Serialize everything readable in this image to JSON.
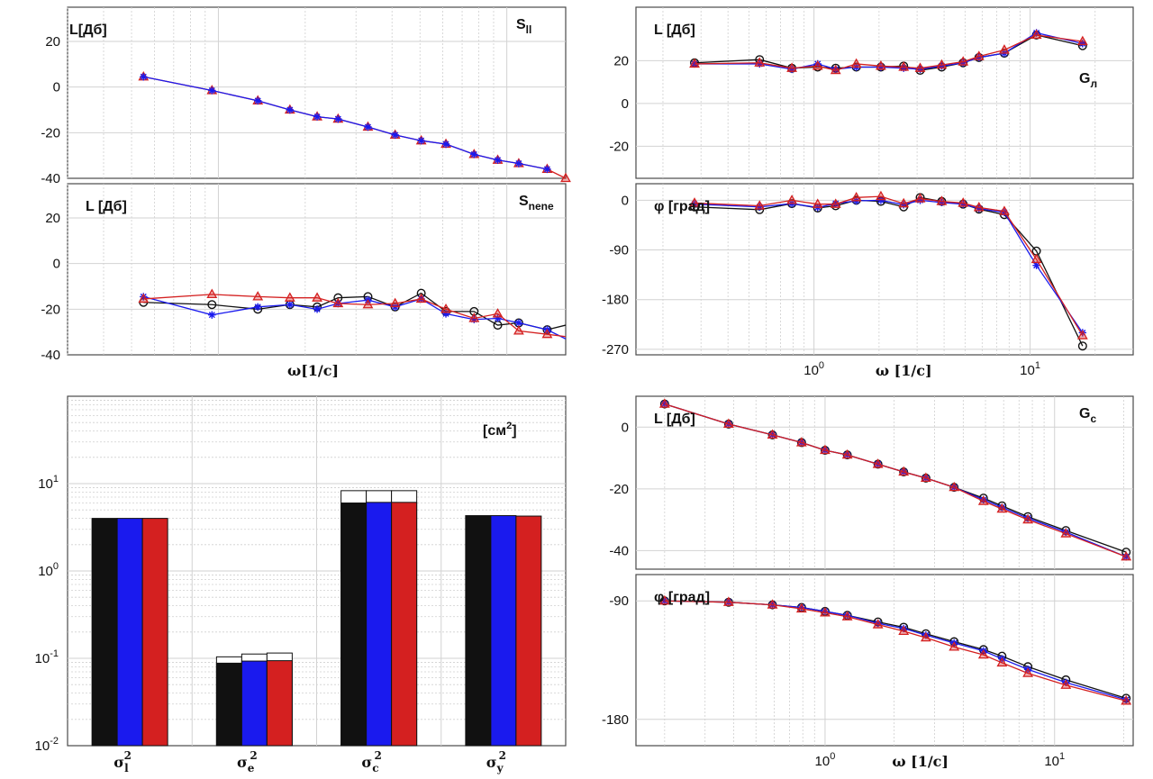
{
  "colors": {
    "black": "#111111",
    "blue": "#1a1aee",
    "red": "#d42020",
    "frame": "#4a4a4a"
  },
  "chart_data": [
    {
      "id": "p1",
      "type": "line",
      "xscale": "log",
      "xlim": [
        0.3,
        16
      ],
      "ylim": [
        -40,
        35
      ],
      "yticks": [
        -40,
        -20,
        0,
        20
      ],
      "ylabel": "L[Дб]",
      "title": "S",
      "title_sub": "ll",
      "show_xticks": false,
      "xlabel": "",
      "series": [
        {
          "color": "red",
          "marker": "triangle",
          "x": [
            0.55,
            0.95,
            1.37,
            1.77,
            2.2,
            2.6,
            3.3,
            4.1,
            5.05,
            6.15,
            7.7,
            9.3,
            11.0,
            13.8,
            16.0
          ],
          "y": [
            4.5,
            -1.5,
            -6,
            -10,
            -13,
            -14,
            -17.5,
            -21,
            -23.5,
            -25,
            -29.5,
            -32,
            -33.5,
            -36,
            -40
          ]
        },
        {
          "color": "blue",
          "marker": "star",
          "x": [
            0.55,
            0.95,
            1.37,
            1.77,
            2.2,
            2.6,
            3.3,
            4.1,
            5.05,
            6.15,
            7.7,
            9.3,
            11.0,
            13.8
          ],
          "y": [
            4.5,
            -1.5,
            -6,
            -10,
            -13,
            -14,
            -17.5,
            -21,
            -23.5,
            -25,
            -29.5,
            -32,
            -33.5,
            -36
          ]
        }
      ]
    },
    {
      "id": "p2",
      "type": "line",
      "xscale": "log",
      "xlim": [
        0.3,
        16
      ],
      "ylim": [
        -40,
        35
      ],
      "yticks": [
        -40,
        -20,
        0,
        20
      ],
      "ylabel": "L [Дб]",
      "title": "S",
      "title_sub": "nene",
      "show_xticks": false,
      "xlabel": "ω[1/c]",
      "series": [
        {
          "color": "black",
          "marker": "circle",
          "x": [
            0.55,
            0.95,
            1.37,
            1.77,
            2.2,
            2.6,
            3.3,
            4.1,
            5.05,
            6.15,
            7.7,
            9.3,
            11.0,
            13.8,
            17.9
          ],
          "y": [
            -17,
            -18,
            -20,
            -18,
            -19,
            -15,
            -14.5,
            -19,
            -13,
            -21,
            -21,
            -27,
            -26,
            -29,
            -27
          ]
        },
        {
          "color": "blue",
          "marker": "star",
          "x": [
            0.55,
            0.95,
            1.37,
            1.77,
            2.2,
            2.6,
            3.3,
            4.1,
            5.05,
            6.15,
            7.7,
            9.3,
            11.0,
            13.8,
            17.9
          ],
          "y": [
            -14.5,
            -22.5,
            -19,
            -18,
            -20,
            -17.5,
            -16,
            -19,
            -15.5,
            -22,
            -24.5,
            -24,
            -26,
            -29,
            -33
          ]
        },
        {
          "color": "red",
          "marker": "triangle",
          "x": [
            0.55,
            0.95,
            1.37,
            1.77,
            2.2,
            2.6,
            3.3,
            4.1,
            5.05,
            6.15,
            7.7,
            9.3,
            11.0,
            13.8,
            17.9
          ],
          "y": [
            -15.5,
            -13.5,
            -14.5,
            -15,
            -15,
            -17.5,
            -18,
            -17.5,
            -15.5,
            -20,
            -24,
            -22,
            -29.5,
            -31,
            -32
          ]
        }
      ]
    },
    {
      "id": "p3",
      "type": "bar",
      "yscale": "log",
      "ylim": [
        0.01,
        100
      ],
      "ytick_base": [
        "10",
        "10",
        "10",
        "10"
      ],
      "ytick_exp": [
        "-2",
        "-1",
        "0",
        "1"
      ],
      "unit": "[см",
      "unit_exp": "2",
      "unit_close": "]",
      "categories": [
        {
          "sym": "σ",
          "sub": "l",
          "sup": "2"
        },
        {
          "sym": "σ",
          "sub": "e",
          "sup": "2"
        },
        {
          "sym": "σ",
          "sub": "c",
          "sup": "2"
        },
        {
          "sym": "σ",
          "sub": "y",
          "sup": "2"
        }
      ],
      "series": [
        {
          "color": "black",
          "values": [
            4.0,
            0.088,
            6.0,
            4.3
          ],
          "outline_top": [
            4.0,
            0.104,
            8.3,
            4.3
          ]
        },
        {
          "color": "blue",
          "values": [
            4.0,
            0.093,
            6.1,
            4.3
          ],
          "outline_top": [
            4.0,
            0.112,
            8.3,
            4.3
          ]
        },
        {
          "color": "red",
          "values": [
            4.0,
            0.094,
            6.1,
            4.25
          ],
          "outline_top": [
            4.0,
            0.115,
            8.3,
            4.25
          ]
        }
      ]
    },
    {
      "id": "p4",
      "type": "line",
      "xscale": "log",
      "xlim": [
        0.15,
        30
      ],
      "ylim": [
        -35,
        45
      ],
      "yticks": [
        -20,
        0,
        20
      ],
      "ylabel": "L  [Дб]",
      "title": "G",
      "title_sub": "л",
      "show_xticks": false,
      "xlabel": "",
      "series": [
        {
          "color": "black",
          "marker": "circle",
          "x": [
            0.28,
            0.56,
            0.79,
            1.04,
            1.26,
            1.57,
            2.04,
            2.6,
            3.1,
            3.9,
            4.9,
            5.8,
            7.6,
            10.7,
            17.5
          ],
          "y": [
            19,
            20.5,
            16.5,
            17,
            16.5,
            17,
            17,
            17.5,
            15.5,
            17,
            19,
            21.5,
            23.5,
            32,
            27
          ]
        },
        {
          "color": "blue",
          "marker": "star",
          "x": [
            0.28,
            0.56,
            0.79,
            1.04,
            1.26,
            1.57,
            2.04,
            2.6,
            3.1,
            3.9,
            4.9,
            5.8,
            7.6,
            10.7,
            17.5
          ],
          "y": [
            18.5,
            18.5,
            16,
            18.5,
            16,
            17,
            17,
            16.5,
            16,
            17.5,
            19,
            21.5,
            23.5,
            33,
            28
          ]
        },
        {
          "color": "red",
          "marker": "triangle",
          "x": [
            0.28,
            0.56,
            0.79,
            1.04,
            1.26,
            1.57,
            2.04,
            2.6,
            3.1,
            3.9,
            4.9,
            5.8,
            7.6,
            10.7,
            17.5
          ],
          "y": [
            18.5,
            19,
            16.5,
            17.5,
            15.5,
            18.5,
            17.5,
            17,
            16.5,
            18,
            19.5,
            22,
            25,
            32,
            29
          ]
        }
      ]
    },
    {
      "id": "p5",
      "type": "line",
      "xscale": "log",
      "xlim": [
        0.15,
        30
      ],
      "ylim": [
        -280,
        30
      ],
      "yticks": [
        -270,
        -180,
        -90,
        0
      ],
      "ylabel": "φ [град]",
      "title": "",
      "title_sub": "",
      "show_xticks": true,
      "xtick_base": [
        "10",
        "10"
      ],
      "xtick_exp": [
        "0",
        "1"
      ],
      "xtick_vals": [
        1,
        10
      ],
      "xlabel": "ω  [1/c]",
      "series": [
        {
          "color": "black",
          "marker": "circle",
          "x": [
            0.28,
            0.56,
            0.79,
            1.04,
            1.26,
            1.57,
            2.04,
            2.6,
            3.1,
            3.9,
            4.9,
            5.8,
            7.6,
            10.7,
            17.5
          ],
          "y": [
            -12,
            -17,
            -6,
            -14,
            -10,
            0,
            -2,
            -12,
            5,
            -2,
            -7,
            -16,
            -26,
            -92,
            -264
          ]
        },
        {
          "color": "blue",
          "marker": "star",
          "x": [
            0.28,
            0.56,
            0.79,
            1.04,
            1.26,
            1.57,
            2.04,
            2.6,
            3.1,
            3.9,
            4.9,
            5.8,
            7.6,
            10.7,
            17.5
          ],
          "y": [
            -7,
            -12,
            -6,
            -13,
            -6,
            -1,
            0,
            -8,
            0,
            -4,
            -7,
            -15,
            -22,
            -118,
            -240
          ]
        },
        {
          "color": "red",
          "marker": "triangle",
          "x": [
            0.28,
            0.56,
            0.79,
            1.04,
            1.26,
            1.57,
            2.04,
            2.6,
            3.1,
            3.9,
            4.9,
            5.8,
            7.6,
            10.7,
            17.5
          ],
          "y": [
            -5,
            -10,
            0,
            -7,
            -7,
            5,
            7,
            -6,
            3,
            -2,
            -5,
            -13,
            -20,
            -107,
            -245
          ]
        }
      ]
    },
    {
      "id": "p6",
      "type": "line",
      "xscale": "log",
      "xlim": [
        0.15,
        22
      ],
      "ylim": [
        -46,
        10
      ],
      "yticks": [
        -40,
        -20,
        0
      ],
      "ylabel": "L  [Дб]",
      "title": "G",
      "title_sub": "c",
      "show_xticks": false,
      "xlabel": "",
      "series": [
        {
          "color": "black",
          "marker": "circle",
          "x": [
            0.2,
            0.38,
            0.59,
            0.79,
            1.0,
            1.25,
            1.7,
            2.2,
            2.75,
            3.65,
            4.9,
            5.9,
            7.65,
            11.2,
            20.5
          ],
          "y": [
            7.5,
            1,
            -2.5,
            -5,
            -7.5,
            -9,
            -12,
            -14.5,
            -16.5,
            -19.5,
            -23,
            -25.5,
            -29,
            -33.5,
            -40.5
          ]
        },
        {
          "color": "blue",
          "marker": "star",
          "x": [
            0.2,
            0.38,
            0.59,
            0.79,
            1.0,
            1.25,
            1.7,
            2.2,
            2.75,
            3.65,
            4.9,
            5.9,
            7.65,
            11.2,
            20.5
          ],
          "y": [
            7.5,
            1,
            -2.5,
            -5,
            -7.5,
            -9,
            -12,
            -14.5,
            -16.5,
            -19.5,
            -23.5,
            -26,
            -29.5,
            -34,
            -42
          ]
        },
        {
          "color": "red",
          "marker": "triangle",
          "x": [
            0.2,
            0.38,
            0.59,
            0.79,
            1.0,
            1.25,
            1.7,
            2.2,
            2.75,
            3.65,
            4.9,
            5.9,
            7.65,
            11.2,
            20.5
          ],
          "y": [
            7.5,
            1,
            -2.5,
            -5,
            -7.5,
            -9,
            -12,
            -14.5,
            -16.5,
            -19.5,
            -24,
            -26.5,
            -30,
            -34.5,
            -42
          ]
        }
      ]
    },
    {
      "id": "p7",
      "type": "line",
      "xscale": "log",
      "xlim": [
        0.15,
        22
      ],
      "ylim": [
        -200,
        -70
      ],
      "yticks": [
        -180,
        -90
      ],
      "ylabel": "φ [град]",
      "title": "",
      "title_sub": "",
      "show_xticks": true,
      "xtick_base": [
        "10",
        "10"
      ],
      "xtick_exp": [
        "0",
        "1"
      ],
      "xtick_vals": [
        1,
        10
      ],
      "xlabel": "ω  [1/c]",
      "series": [
        {
          "color": "black",
          "marker": "circle",
          "x": [
            0.2,
            0.38,
            0.59,
            0.79,
            1.0,
            1.25,
            1.7,
            2.2,
            2.75,
            3.65,
            4.9,
            5.9,
            7.65,
            11.2,
            20.5
          ],
          "y": [
            -90,
            -91,
            -93,
            -95,
            -98,
            -101,
            -106,
            -110,
            -115,
            -121,
            -127,
            -132,
            -140,
            -150,
            -164
          ]
        },
        {
          "color": "blue",
          "marker": "star",
          "x": [
            0.2,
            0.38,
            0.59,
            0.79,
            1.0,
            1.25,
            1.7,
            2.2,
            2.75,
            3.65,
            4.9,
            5.9,
            7.65,
            11.2,
            20.5
          ],
          "y": [
            -90,
            -91,
            -93,
            -95,
            -98,
            -101,
            -107,
            -111,
            -116,
            -122,
            -128,
            -134,
            -142,
            -152,
            -165
          ]
        },
        {
          "color": "red",
          "marker": "triangle",
          "x": [
            0.2,
            0.38,
            0.59,
            0.79,
            1.0,
            1.25,
            1.7,
            2.2,
            2.75,
            3.65,
            4.9,
            5.9,
            7.65,
            11.2,
            20.5
          ],
          "y": [
            -90,
            -91,
            -93,
            -96,
            -99,
            -102,
            -108,
            -113,
            -118,
            -125,
            -131,
            -137,
            -145,
            -154,
            -166
          ]
        }
      ]
    }
  ]
}
